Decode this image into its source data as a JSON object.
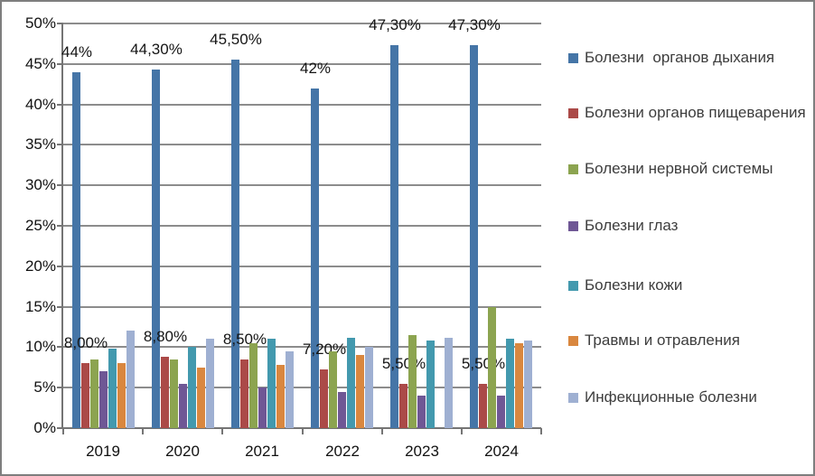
{
  "chart_data": {
    "type": "bar",
    "title": "",
    "xlabel": "",
    "ylabel": "",
    "categories": [
      "2019",
      "2020",
      "2021",
      "2022",
      "2023",
      "2024"
    ],
    "y_axis": {
      "min": 0,
      "max": 50,
      "step": 5,
      "tick_labels": [
        "0%",
        "5%",
        "10%",
        "15%",
        "20%",
        "25%",
        "30%",
        "35%",
        "40%",
        "45%",
        "50%"
      ]
    },
    "grid": true,
    "legend_position": "right",
    "series": [
      {
        "key": "respiratory",
        "name": "Болезни  органов дыхания",
        "color": "#4575a7",
        "values": [
          44,
          44.3,
          45.5,
          42,
          47.3,
          47.3
        ],
        "labels": [
          "44%",
          "44,30%",
          "45,50%",
          "42%",
          "47,30%",
          "47,30%"
        ]
      },
      {
        "key": "digestive",
        "name": "Болезни органов пищеварения",
        "color": "#ab4a48",
        "values": [
          8,
          8.8,
          8.5,
          7.2,
          5.5,
          5.5
        ],
        "labels": [
          "8,00%",
          "8,80%",
          "8,50%",
          "7,20%",
          "5,50%",
          "5,50%"
        ]
      },
      {
        "key": "nervous",
        "name": "Болезни нервной системы",
        "color": "#8ca450",
        "values": [
          8.5,
          8.5,
          10.5,
          9.5,
          11.5,
          15
        ]
      },
      {
        "key": "eye",
        "name": "Болезни глаз",
        "color": "#6f5795",
        "values": [
          7,
          5.5,
          5,
          4.5,
          4,
          4
        ]
      },
      {
        "key": "skin",
        "name": "Болезни кожи",
        "color": "#4399ae",
        "values": [
          9.8,
          10,
          11.1,
          11.2,
          10.8,
          11
        ]
      },
      {
        "key": "injuries",
        "name": "Травмы и отравления",
        "color": "#d9873f",
        "values": [
          8,
          7.5,
          7.8,
          9,
          0,
          10.5
        ]
      },
      {
        "key": "infectious",
        "name": "Инфекционные болезни",
        "color": "#9fb0d2",
        "values": [
          12,
          11,
          9.5,
          10,
          11.2,
          10.8
        ]
      }
    ]
  },
  "colors": {
    "background": "#ffffff",
    "border": "#7e7e7e",
    "gridline": "#8c8c8c",
    "axis": "#757575",
    "tick_text": "#111111",
    "data_label_text": "#151515",
    "legend_text": "#3d3d3d"
  }
}
